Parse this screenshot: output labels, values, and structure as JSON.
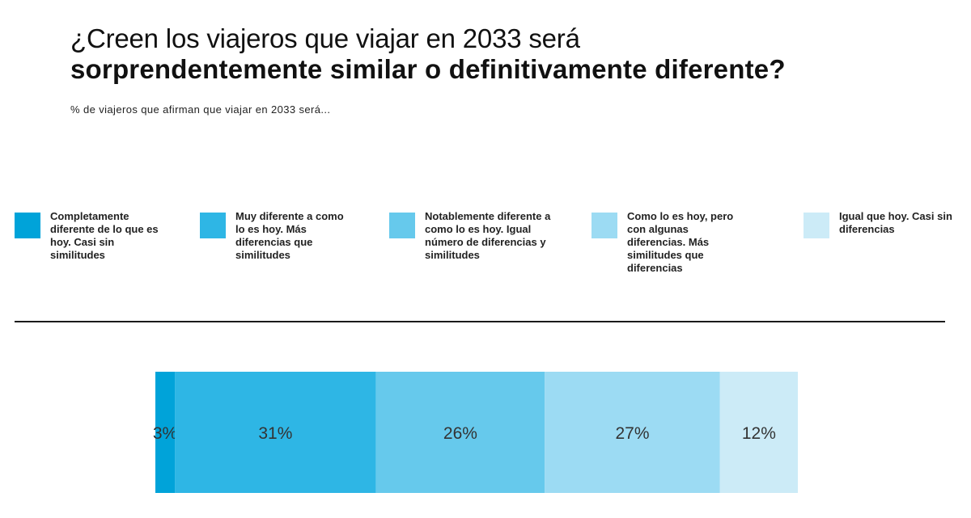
{
  "title": {
    "line1": "¿Creen los viajeros que viajar en 2033 será",
    "line2": "sorprendentemente similar o definitivamente diferente?"
  },
  "subtitle": "% de viajeros que afirman que viajar en 2033 será...",
  "legend": [
    {
      "label": "Completamente diferente de lo que es hoy. Casi sin similitudes",
      "color": "#00a3d9"
    },
    {
      "label": "Muy diferente a como lo es hoy. Más diferencias que similitudes",
      "color": "#2eb6e5"
    },
    {
      "label": "Notablemente diferente a como lo es hoy. Igual número de diferencias y similitudes",
      "color": "#66c9ec"
    },
    {
      "label": "Como lo es hoy, pero con algunas diferencias. Más similitudes que diferencias",
      "color": "#9cdbf3"
    },
    {
      "label": "Igual que hoy. Casi sin diferencias",
      "color": "#ccebf7"
    }
  ],
  "chart_data": {
    "type": "bar",
    "orientation": "horizontal-stacked-100",
    "title": "¿Creen los viajeros que viajar en 2033 será sorprendentemente similar o definitivamente diferente?",
    "subtitle": "% de viajeros que afirman que viajar en 2033 será...",
    "categories": [
      "Completamente diferente de lo que es hoy. Casi sin similitudes",
      "Muy diferente a como lo es hoy. Más diferencias que similitudes",
      "Notablemente diferente a como lo es hoy. Igual número de diferencias y similitudes",
      "Como lo es hoy, pero con algunas diferencias. Más similitudes que diferencias",
      "Igual que hoy. Casi sin diferencias"
    ],
    "values": [
      3,
      31,
      26,
      27,
      12
    ],
    "labels": [
      "3%",
      "31%",
      "26%",
      "27%",
      "12%"
    ],
    "colors": [
      "#00a3d9",
      "#2eb6e5",
      "#66c9ec",
      "#9cdbf3",
      "#ccebf7"
    ],
    "unit": "%",
    "legend_position": "top"
  }
}
